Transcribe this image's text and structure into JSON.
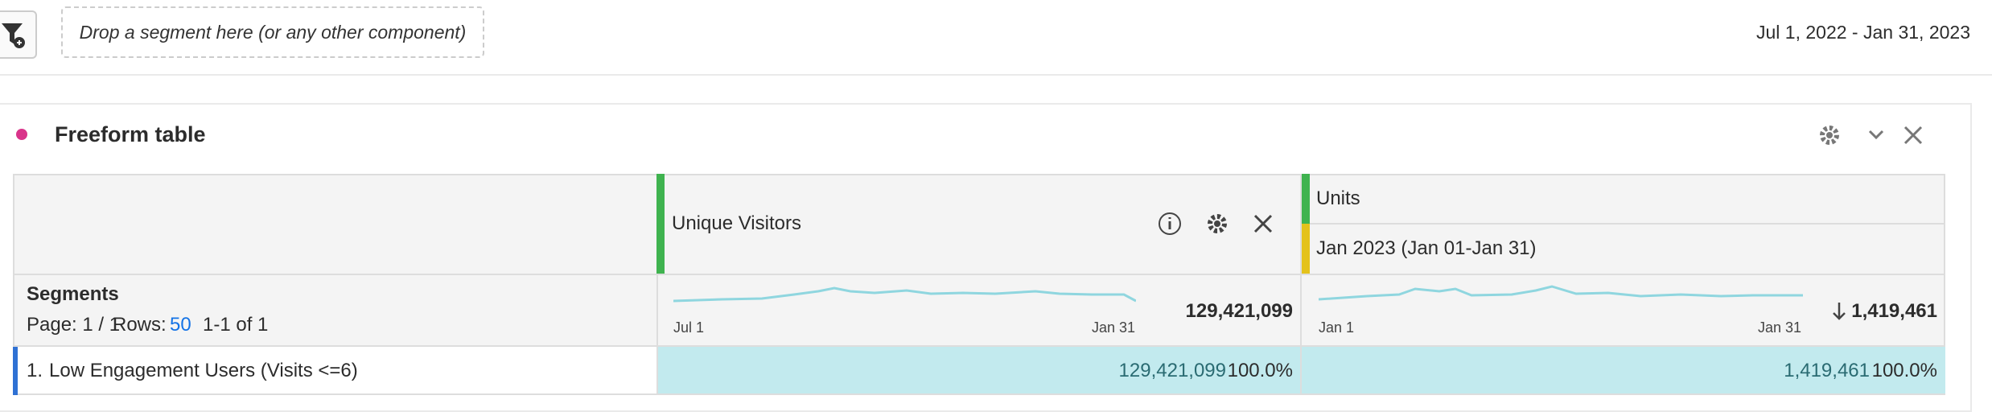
{
  "toolbar": {
    "drop_zone": "Drop a segment here (or any other component)",
    "date_range": "Jul 1, 2022 - Jan 31, 2023"
  },
  "panel": {
    "title": "Freeform table",
    "columns": [
      {
        "metric": "Unique Visitors",
        "spark_start": "Jul 1",
        "spark_end": "Jan 31",
        "total": "129,421,099"
      },
      {
        "metric": "Units",
        "filter": "Jan 2023 (Jan 01-Jan 31)",
        "spark_start": "Jan 1",
        "spark_end": "Jan 31",
        "total": "1,419,461"
      }
    ],
    "dimension": "Segments",
    "page": "Page: 1 / 1",
    "rows_label": "Rows:",
    "rows_value": "50",
    "range": "1-1 of 1",
    "rows": [
      {
        "index": "1.",
        "label": "Low Engagement Users (Visits <=6)",
        "cells": [
          {
            "value": "129,421,099",
            "percent": "100.0%"
          },
          {
            "value": "1,419,461",
            "percent": "100.0%"
          }
        ]
      }
    ]
  }
}
